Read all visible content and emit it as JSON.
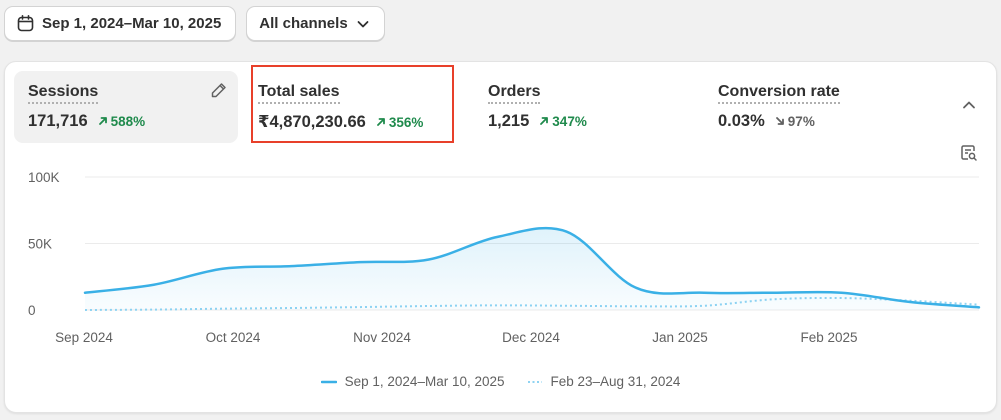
{
  "toolbar": {
    "date_range": "Sep 1, 2024–Mar 10, 2025",
    "channels": "All channels"
  },
  "metrics": [
    {
      "name": "Sessions",
      "value": "171,716",
      "change": "588%",
      "direction": "up"
    },
    {
      "name": "Total sales",
      "value": "₹4,870,230.66",
      "change": "356%",
      "direction": "up"
    },
    {
      "name": "Orders",
      "value": "1,215",
      "change": "347%",
      "direction": "up"
    },
    {
      "name": "Conversion rate",
      "value": "0.03%",
      "change": "97%",
      "direction": "down"
    }
  ],
  "colors": {
    "accent": "#3ab0e6",
    "comparison": "#8fd3f2",
    "positive": "#1f8a4c",
    "negative": "#616161",
    "highlight": "#e8402a"
  },
  "chart_data": {
    "type": "line",
    "metric": "Total sales",
    "y_ticks": [
      "100K",
      "50K",
      "0"
    ],
    "ylim": [
      0,
      100000
    ],
    "x_ticks": [
      "Sep 2024",
      "Oct 2024",
      "Nov 2024",
      "Dec 2024",
      "Jan 2025",
      "Feb 2025"
    ],
    "x": [
      "Sep 1",
      "Sep 15",
      "Oct 1",
      "Oct 15",
      "Nov 1",
      "Nov 15",
      "Dec 1",
      "Dec 15",
      "Jan 1",
      "Jan 15",
      "Feb 1",
      "Feb 15",
      "Mar 1",
      "Mar 10"
    ],
    "series": [
      {
        "name": "Sep 1, 2024–Mar 10, 2025",
        "style": "solid",
        "values": [
          13000,
          19000,
          31000,
          33000,
          36000,
          38000,
          55000,
          59000,
          17000,
          13000,
          13000,
          13000,
          6000,
          2000
        ]
      },
      {
        "name": "Feb 23–Aug 31, 2024",
        "style": "dotted",
        "values": [
          0,
          300,
          1000,
          1500,
          2200,
          3000,
          3500,
          3200,
          2800,
          3200,
          8000,
          9000,
          7000,
          4000
        ]
      }
    ]
  }
}
